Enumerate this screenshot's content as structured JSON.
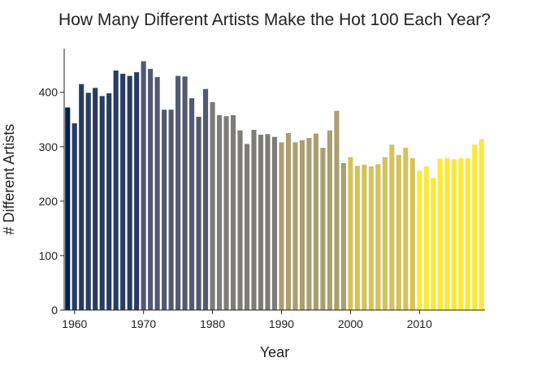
{
  "chart_data": {
    "type": "bar",
    "title": "How Many Different Artists Make the Hot 100 Each Year?",
    "xlabel": "Year",
    "ylabel": "# Different Artists",
    "xlim": [
      1958.5,
      2019.5
    ],
    "ylim": [
      0,
      480
    ],
    "x_ticks": [
      1960,
      1970,
      1980,
      1990,
      2000,
      2010
    ],
    "y_ticks": [
      0,
      100,
      200,
      300,
      400
    ],
    "grid": false,
    "legend": "none",
    "color_scale": [
      "#00224e",
      "#3b496c",
      "#7d7c78",
      "#c0b06b",
      "#fee838"
    ],
    "x": [
      1959,
      1960,
      1961,
      1962,
      1963,
      1964,
      1965,
      1966,
      1967,
      1968,
      1969,
      1970,
      1971,
      1972,
      1973,
      1974,
      1975,
      1976,
      1977,
      1978,
      1979,
      1980,
      1981,
      1982,
      1983,
      1984,
      1985,
      1986,
      1987,
      1988,
      1989,
      1990,
      1991,
      1992,
      1993,
      1994,
      1995,
      1996,
      1997,
      1998,
      1999,
      2000,
      2001,
      2002,
      2003,
      2004,
      2005,
      2006,
      2007,
      2008,
      2009,
      2010,
      2011,
      2012,
      2013,
      2014,
      2015,
      2016,
      2017,
      2018,
      2019
    ],
    "values": [
      372,
      343,
      415,
      399,
      408,
      393,
      398,
      440,
      434,
      430,
      437,
      457,
      443,
      428,
      368,
      368,
      430,
      429,
      389,
      355,
      406,
      382,
      358,
      356,
      358,
      330,
      305,
      331,
      322,
      323,
      318,
      308,
      325,
      308,
      312,
      316,
      324,
      298,
      330,
      366,
      270,
      281,
      265,
      267,
      264,
      268,
      281,
      304,
      285,
      298,
      279,
      256,
      264,
      243,
      278,
      279,
      277,
      279,
      279,
      304,
      314
    ]
  }
}
